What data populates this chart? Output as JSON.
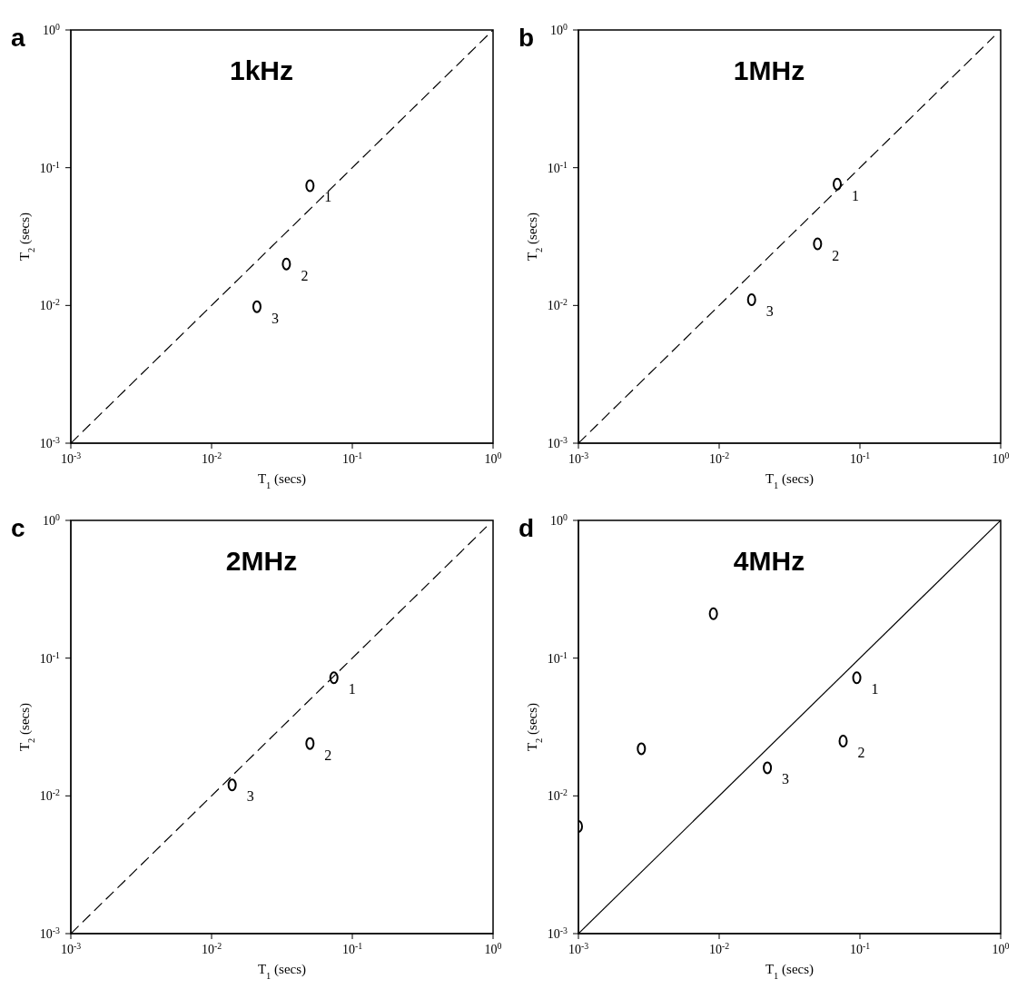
{
  "chart_data": [
    {
      "type": "scatter",
      "title": "1kHz",
      "xlabel": "T$_{1}$ (secs)",
      "ylabel": "T$_{2}$ (secs)",
      "log": "xy",
      "xlim": [
        0.001,
        1
      ],
      "ylim": [
        0.001,
        1
      ],
      "xticks": [
        {
          "value": 0.001,
          "label": "10$^{-3}$"
        },
        {
          "value": 0.01,
          "label": "10$^{-2}$"
        },
        {
          "value": 0.1,
          "label": "10$^{-1}$"
        },
        {
          "value": 1,
          "label": "10$^{0}$"
        }
      ],
      "yticks": [
        {
          "value": 0.001,
          "label": "10$^{-3}$"
        },
        {
          "value": 0.01,
          "label": "10$^{-2}$"
        },
        {
          "value": 0.1,
          "label": "10$^{-1}$"
        },
        {
          "value": 1,
          "label": "10$^{0}$"
        }
      ],
      "marker": "circle",
      "series": [
        {
          "type": "line",
          "color": "#000000",
          "line_style": "dashed",
          "marker": "none",
          "x": [
            0.001,
            1
          ],
          "values": [
            0.001,
            1
          ]
        },
        {
          "color": "#000000",
          "x": [
            0.05,
            0.034,
            0.021
          ],
          "values": [
            0.074,
            0.02,
            0.0098
          ]
        }
      ],
      "annotations": [
        "a",
        {
          "text": "1",
          "x": 0.05,
          "y": 0.074
        },
        {
          "text": "2",
          "x": 0.034,
          "y": 0.02
        },
        {
          "text": "3",
          "x": 0.021,
          "y": 0.0098
        }
      ]
    },
    {
      "type": "scatter",
      "title": "1MHz",
      "xlabel": "T$_{1}$ (secs)",
      "ylabel": "T$_{2}$ (secs)",
      "log": "xy",
      "xlim": [
        0.001,
        1
      ],
      "ylim": [
        0.001,
        1
      ],
      "xticks": [
        {
          "value": 0.001,
          "label": "10$^{-3}$"
        },
        {
          "value": 0.01,
          "label": "10$^{-2}$"
        },
        {
          "value": 0.1,
          "label": "10$^{-1}$"
        },
        {
          "value": 1,
          "label": "10$^{0}$"
        }
      ],
      "yticks": [
        {
          "value": 0.001,
          "label": "10$^{-3}$"
        },
        {
          "value": 0.01,
          "label": "10$^{-2}$"
        },
        {
          "value": 0.1,
          "label": "10$^{-1}$"
        },
        {
          "value": 1,
          "label": "10$^{0}$"
        }
      ],
      "marker": "circle",
      "series": [
        {
          "type": "line",
          "color": "#000000",
          "line_style": "dashed",
          "marker": "none",
          "x": [
            0.001,
            0.9
          ],
          "values": [
            0.001,
            0.9
          ]
        },
        {
          "color": "#000000",
          "x": [
            0.069,
            0.05,
            0.017
          ],
          "values": [
            0.076,
            0.028,
            0.011
          ]
        }
      ],
      "annotations": [
        "b",
        {
          "text": "1",
          "x": 0.069,
          "y": 0.076
        },
        {
          "text": "2",
          "x": 0.05,
          "y": 0.028
        },
        {
          "text": "3",
          "x": 0.017,
          "y": 0.011
        }
      ]
    },
    {
      "type": "scatter",
      "title": "2MHz",
      "xlabel": "T$_{1}$ (secs)",
      "ylabel": "T$_{2}$ (secs)",
      "log": "xy",
      "xlim": [
        0.001,
        1
      ],
      "ylim": [
        0.001,
        1
      ],
      "xticks": [
        {
          "value": 0.001,
          "label": "10$^{-3}$"
        },
        {
          "value": 0.01,
          "label": "10$^{-2}$"
        },
        {
          "value": 0.1,
          "label": "10$^{-1}$"
        },
        {
          "value": 1,
          "label": "10$^{0}$"
        }
      ],
      "yticks": [
        {
          "value": 0.001,
          "label": "10$^{-3}$"
        },
        {
          "value": 0.01,
          "label": "10$^{-2}$"
        },
        {
          "value": 0.1,
          "label": "10$^{-1}$"
        },
        {
          "value": 1,
          "label": "10$^{0}$"
        }
      ],
      "marker": "circle",
      "series": [
        {
          "type": "line",
          "color": "#000000",
          "line_style": "dashed",
          "marker": "none",
          "x": [
            0.001,
            0.9
          ],
          "values": [
            0.001,
            0.9
          ]
        },
        {
          "color": "#000000",
          "x": [
            0.074,
            0.05,
            0.014
          ],
          "values": [
            0.072,
            0.024,
            0.012
          ]
        }
      ],
      "annotations": [
        "c",
        {
          "text": "1",
          "x": 0.074,
          "y": 0.072
        },
        {
          "text": "2",
          "x": 0.05,
          "y": 0.024
        },
        {
          "text": "3",
          "x": 0.014,
          "y": 0.012
        }
      ]
    },
    {
      "type": "scatter",
      "title": "4MHz",
      "xlabel": "T$_{1}$ (secs)",
      "ylabel": "T$_{2}$ (secs)",
      "log": "xy",
      "xlim": [
        0.001,
        1
      ],
      "ylim": [
        0.001,
        1
      ],
      "xticks": [
        {
          "value": 0.001,
          "label": "10$^{-3}$"
        },
        {
          "value": 0.01,
          "label": "10$^{-2}$"
        },
        {
          "value": 0.1,
          "label": "10$^{-1}$"
        },
        {
          "value": 1,
          "label": "10$^{0}$"
        }
      ],
      "yticks": [
        {
          "value": 0.001,
          "label": "10$^{-3}$"
        },
        {
          "value": 0.01,
          "label": "10$^{-2}$"
        },
        {
          "value": 0.1,
          "label": "10$^{-1}$"
        },
        {
          "value": 1,
          "label": "10$^{0}$"
        }
      ],
      "marker": "circle",
      "series": [
        {
          "type": "line",
          "color": "#000000",
          "line_style": "solid",
          "marker": "none",
          "x": [
            0.001,
            1
          ],
          "values": [
            0.001,
            1
          ]
        },
        {
          "color": "#000000",
          "x": [
            0.095,
            0.076,
            0.022,
            0.0028,
            0.0091,
            0.001
          ],
          "values": [
            0.072,
            0.025,
            0.016,
            0.022,
            0.21,
            0.006
          ]
        }
      ],
      "annotations": [
        "d",
        {
          "text": "1",
          "x": 0.095,
          "y": 0.072
        },
        {
          "text": "2",
          "x": 0.076,
          "y": 0.025
        },
        {
          "text": "3",
          "x": 0.022,
          "y": 0.016
        }
      ]
    }
  ]
}
